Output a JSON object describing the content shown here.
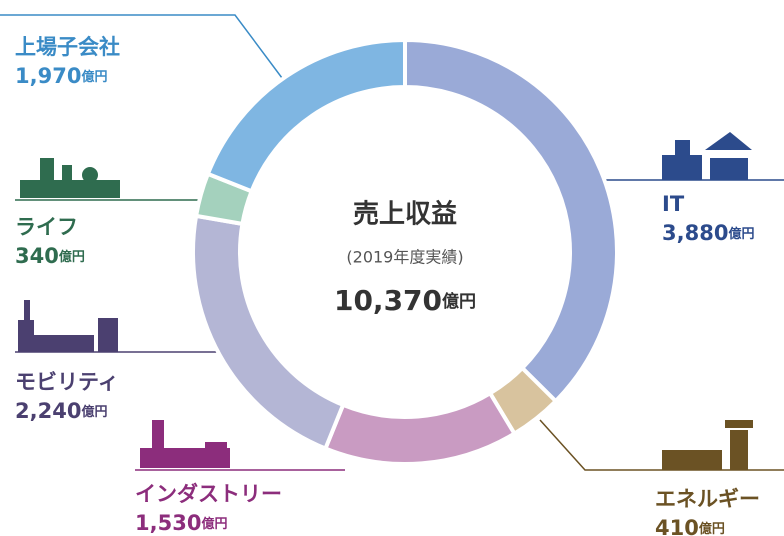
{
  "chart_data": {
    "type": "donut",
    "categories": [
      "IT",
      "エネルギー",
      "インダストリー",
      "モビリティ",
      "ライフ",
      "上場子会社"
    ],
    "values": [
      3880,
      410,
      1530,
      2240,
      340,
      1970
    ],
    "value_labels": [
      "3,880",
      "410",
      "1,530",
      "2,240",
      "340",
      "1,970"
    ],
    "unit": "億円",
    "colors": [
      "#9aaad7",
      "#d8c39e",
      "#c99bc2",
      "#b4b6d5",
      "#a4d1bd",
      "#7fb6e2"
    ],
    "label_colors": [
      "#2c4b8c",
      "#6b5224",
      "#8c2d7c",
      "#4b4070",
      "#2f6c4f",
      "#3a8bc6"
    ],
    "center_title": "売上収益",
    "center_subtitle": "(2019年度実績)",
    "total": 10370,
    "total_label": "10,370"
  }
}
